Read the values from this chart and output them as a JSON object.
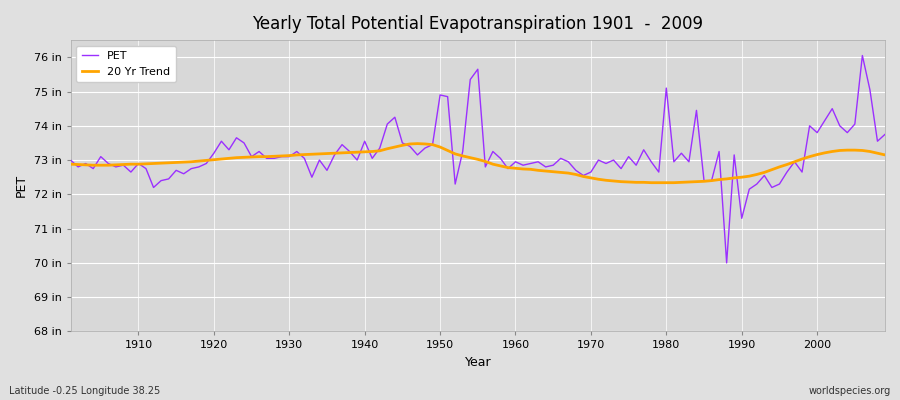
{
  "title": "Yearly Total Potential Evapotranspiration 1901  -  2009",
  "xlabel": "Year",
  "ylabel": "PET",
  "subtitle": "Latitude -0.25 Longitude 38.25",
  "watermark": "worldspecies.org",
  "ylim": [
    68,
    76.5
  ],
  "yticks": [
    68,
    69,
    70,
    71,
    72,
    73,
    74,
    75,
    76
  ],
  "ytick_labels": [
    "68 in",
    "69 in",
    "70 in",
    "71 in",
    "72 in",
    "73 in",
    "74 in",
    "75 in",
    "76 in"
  ],
  "xlim": [
    1901,
    2009
  ],
  "xticks": [
    1910,
    1920,
    1930,
    1940,
    1950,
    1960,
    1970,
    1980,
    1990,
    2000
  ],
  "pet_color": "#9B30FF",
  "trend_color": "#FFA500",
  "fig_bg_color": "#E0E0E0",
  "plot_bg_color": "#D8D8D8",
  "pet_years": [
    1901,
    1902,
    1903,
    1904,
    1905,
    1906,
    1907,
    1908,
    1909,
    1910,
    1911,
    1912,
    1913,
    1914,
    1915,
    1916,
    1917,
    1918,
    1919,
    1920,
    1921,
    1922,
    1923,
    1924,
    1925,
    1926,
    1927,
    1928,
    1929,
    1930,
    1931,
    1932,
    1933,
    1934,
    1935,
    1936,
    1937,
    1938,
    1939,
    1940,
    1941,
    1942,
    1943,
    1944,
    1945,
    1946,
    1947,
    1948,
    1949,
    1950,
    1951,
    1952,
    1953,
    1954,
    1955,
    1956,
    1957,
    1958,
    1959,
    1960,
    1961,
    1962,
    1963,
    1964,
    1965,
    1966,
    1967,
    1968,
    1969,
    1970,
    1971,
    1972,
    1973,
    1974,
    1975,
    1976,
    1977,
    1978,
    1979,
    1980,
    1981,
    1982,
    1983,
    1984,
    1985,
    1986,
    1987,
    1988,
    1989,
    1990,
    1991,
    1992,
    1993,
    1994,
    1995,
    1996,
    1997,
    1998,
    1999,
    2000,
    2001,
    2002,
    2003,
    2004,
    2005,
    2006,
    2007,
    2008,
    2009
  ],
  "pet_values": [
    73.0,
    72.8,
    72.9,
    72.75,
    73.1,
    72.9,
    72.8,
    72.85,
    72.65,
    72.9,
    72.75,
    72.2,
    72.4,
    72.45,
    72.7,
    72.6,
    72.75,
    72.8,
    72.9,
    73.2,
    73.55,
    73.3,
    73.65,
    73.5,
    73.1,
    73.25,
    73.05,
    73.05,
    73.1,
    73.1,
    73.25,
    73.05,
    72.5,
    73.0,
    72.7,
    73.15,
    73.45,
    73.25,
    73.0,
    73.55,
    73.05,
    73.35,
    74.05,
    74.25,
    73.5,
    73.4,
    73.15,
    73.35,
    73.45,
    74.9,
    74.85,
    72.3,
    73.25,
    75.35,
    75.65,
    72.8,
    73.25,
    73.05,
    72.75,
    72.95,
    72.85,
    72.9,
    72.95,
    72.8,
    72.85,
    73.05,
    72.95,
    72.7,
    72.55,
    72.65,
    73.0,
    72.9,
    73.0,
    72.75,
    73.1,
    72.85,
    73.3,
    72.95,
    72.65,
    75.1,
    72.95,
    73.2,
    72.95,
    74.45,
    72.4,
    72.4,
    73.25,
    70.0,
    73.15,
    71.3,
    72.15,
    72.3,
    72.55,
    72.2,
    72.3,
    72.65,
    72.95,
    72.65,
    74.0,
    73.8,
    74.15,
    74.5,
    74.0,
    73.8,
    74.05,
    76.05,
    75.05,
    73.55,
    73.75
  ],
  "trend_years": [
    1901,
    1902,
    1903,
    1904,
    1905,
    1906,
    1907,
    1908,
    1909,
    1910,
    1911,
    1912,
    1913,
    1914,
    1915,
    1916,
    1917,
    1918,
    1919,
    1920,
    1921,
    1922,
    1923,
    1924,
    1925,
    1926,
    1927,
    1928,
    1929,
    1930,
    1931,
    1932,
    1933,
    1934,
    1935,
    1936,
    1937,
    1938,
    1939,
    1940,
    1941,
    1942,
    1943,
    1944,
    1945,
    1946,
    1947,
    1948,
    1949,
    1950,
    1951,
    1952,
    1953,
    1954,
    1955,
    1956,
    1957,
    1958,
    1959,
    1960,
    1961,
    1962,
    1963,
    1964,
    1965,
    1966,
    1967,
    1968,
    1969,
    1970,
    1971,
    1972,
    1973,
    1974,
    1975,
    1976,
    1977,
    1978,
    1979,
    1980,
    1981,
    1982,
    1983,
    1984,
    1985,
    1986,
    1987,
    1988,
    1989,
    1990,
    1991,
    1992,
    1993,
    1994,
    1995,
    1996,
    1997,
    1998,
    1999,
    2000,
    2001,
    2002,
    2003,
    2004,
    2005,
    2006,
    2007,
    2008,
    2009
  ],
  "trend_values": [
    72.88,
    72.87,
    72.86,
    72.85,
    72.85,
    72.85,
    72.86,
    72.87,
    72.88,
    72.88,
    72.89,
    72.9,
    72.91,
    72.92,
    72.93,
    72.94,
    72.95,
    72.97,
    72.99,
    73.01,
    73.03,
    73.05,
    73.07,
    73.08,
    73.09,
    73.1,
    73.1,
    73.11,
    73.12,
    73.13,
    73.15,
    73.16,
    73.17,
    73.18,
    73.19,
    73.2,
    73.21,
    73.22,
    73.23,
    73.24,
    73.25,
    73.27,
    73.33,
    73.38,
    73.43,
    73.47,
    73.48,
    73.47,
    73.45,
    73.38,
    73.28,
    73.18,
    73.12,
    73.07,
    73.02,
    72.96,
    72.88,
    72.83,
    72.78,
    72.76,
    72.74,
    72.73,
    72.7,
    72.68,
    72.66,
    72.64,
    72.62,
    72.58,
    72.52,
    72.48,
    72.44,
    72.41,
    72.39,
    72.37,
    72.36,
    72.35,
    72.35,
    72.34,
    72.34,
    72.34,
    72.34,
    72.35,
    72.36,
    72.37,
    72.38,
    72.4,
    72.43,
    72.45,
    72.48,
    72.5,
    72.53,
    72.58,
    72.64,
    72.72,
    72.8,
    72.87,
    72.95,
    73.03,
    73.1,
    73.16,
    73.21,
    73.25,
    73.28,
    73.29,
    73.29,
    73.28,
    73.25,
    73.2,
    73.15
  ]
}
